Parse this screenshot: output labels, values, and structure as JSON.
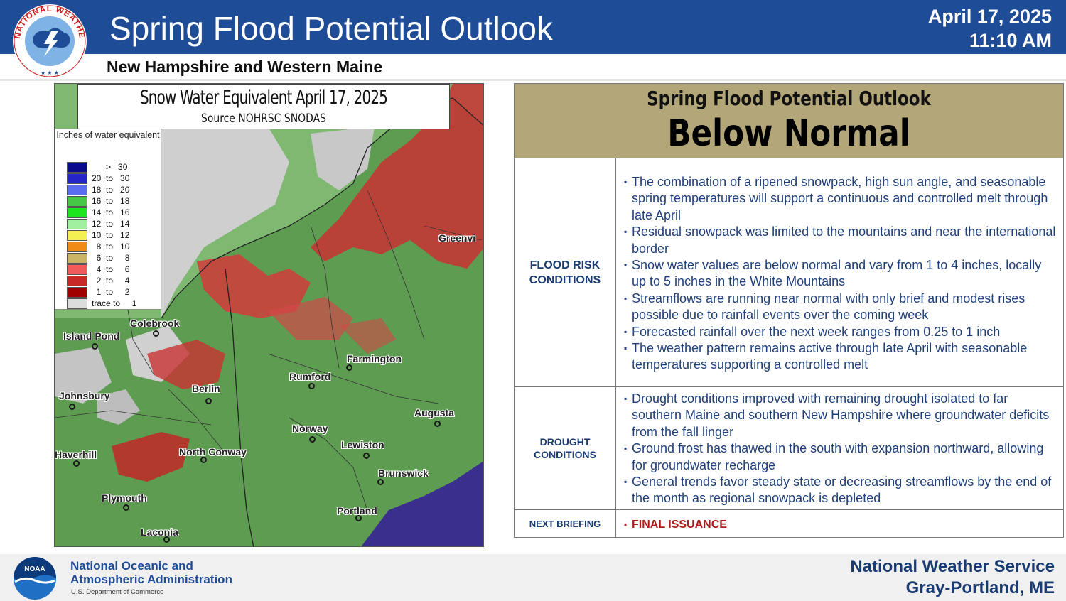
{
  "header": {
    "title": "Spring Flood Potential Outlook",
    "subtitle": "New Hampshire and Western Maine",
    "date": "April 17, 2025",
    "time": "11:10 AM",
    "logo_text": "NATIONAL WEATHER SERVICE",
    "colors": {
      "band": "#1f4c96",
      "title_text": "#ffffff"
    }
  },
  "map": {
    "title": "Snow Water Equivalent April 17, 2025",
    "source": "Source NOHRSC SNODAS",
    "legend": {
      "title": "Inches of water equivalent",
      "items": [
        {
          "label": "      >   30",
          "color": "#0a0a8c"
        },
        {
          "label": "20  to   30",
          "color": "#2424c8"
        },
        {
          "label": "18  to   20",
          "color": "#5a6cf0"
        },
        {
          "label": "16  to   18",
          "color": "#46c846"
        },
        {
          "label": "14  to   16",
          "color": "#1ee61e"
        },
        {
          "label": "12  to   14",
          "color": "#a0f0a0"
        },
        {
          "label": "10  to   12",
          "color": "#f0f050"
        },
        {
          "label": "  8  to   10",
          "color": "#f08c14"
        },
        {
          "label": "  6  to     8",
          "color": "#c8b464"
        },
        {
          "label": "  4  to     6",
          "color": "#f05a5a"
        },
        {
          "label": "  2  to     4",
          "color": "#c82828"
        },
        {
          "label": "  1  to     2",
          "color": "#a00000"
        },
        {
          "label": "trace to     1",
          "color": "#dcdcdc"
        }
      ]
    },
    "cities": [
      {
        "name": "Colebrook"
      },
      {
        "name": "Island Pond"
      },
      {
        "name": "Farmington"
      },
      {
        "name": "Rumford"
      },
      {
        "name": "Berlin"
      },
      {
        "name": "Johnsbury"
      },
      {
        "name": "Augusta"
      },
      {
        "name": "Norway"
      },
      {
        "name": "Lewiston"
      },
      {
        "name": "North Conway"
      },
      {
        "name": "Haverhill"
      },
      {
        "name": "Brunswick"
      },
      {
        "name": "Plymouth"
      },
      {
        "name": "Portland"
      },
      {
        "name": "Laconia"
      },
      {
        "name": "Greenvi"
      }
    ]
  },
  "outlook": {
    "heading": "Spring Flood Potential Outlook",
    "status": "Below Normal",
    "colors": {
      "header_bg": "#b3a679",
      "label_text": "#1a3a72",
      "bullet_text": "#1f3f7a",
      "final_text": "#b01c1c"
    },
    "rows": [
      {
        "label": "FLOOD RISK CONDITIONS",
        "bullets": [
          "The combination of a ripened snowpack, high sun angle, and seasonable spring temperatures will support a continuous and controlled melt through late April",
          "Residual snowpack was limited to the mountains and near the international border",
          "Snow water values are below normal and vary from 1 to 4 inches, locally up to 5 inches in the White Mountains",
          "Streamflows are running near normal with only brief and modest rises possible due to rainfall events over the coming week",
          "Forecasted rainfall over the next week ranges from 0.25 to 1 inch",
          "The weather pattern remains active through late April with seasonable temperatures supporting a controlled melt"
        ]
      },
      {
        "label": "DROUGHT CONDITIONS",
        "bullets": [
          "Drought conditions improved with remaining drought isolated to far southern Maine and southern New Hampshire where groundwater deficits from the fall linger",
          "Ground frost has thawed in the south with expansion northward, allowing for groundwater recharge",
          "General trends favor steady state or decreasing streamflows by the end of the month as regional snowpack is depleted"
        ]
      },
      {
        "label": "NEXT BRIEFING",
        "bullets": [
          "FINAL ISSUANCE"
        ]
      }
    ]
  },
  "footer": {
    "noaa_logo_text": "NOAA",
    "noaa_name_line1": "National Oceanic and",
    "noaa_name_line2": "Atmospheric Administration",
    "noaa_dept": "U.S. Department of Commerce",
    "office_line1": "National Weather Service",
    "office_line2": "Gray-Portland, ME"
  }
}
